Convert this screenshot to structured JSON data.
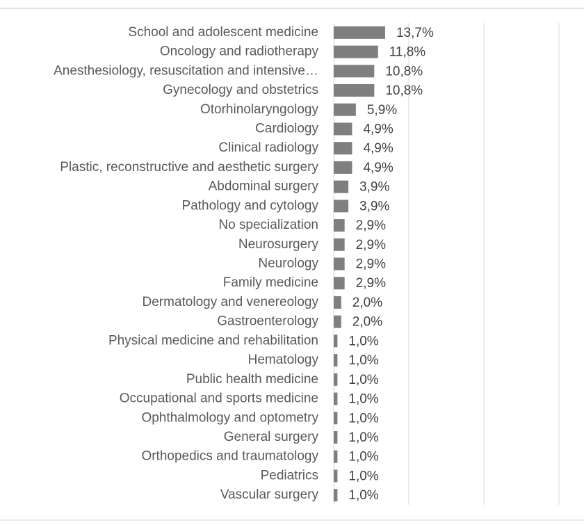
{
  "chart_data": {
    "type": "bar",
    "orientation": "horizontal",
    "categories": [
      "School and adolescent medicine",
      "Oncology and radiotherapy",
      "Anesthesiology, resuscitation and intensive…",
      "Gynecology and obstetrics",
      "Otorhinolaryngology",
      "Cardiology",
      "Clinical radiology",
      "Plastic, reconstructive and aesthetic surgery",
      "Abdominal surgery",
      "Pathology and cytology",
      "No specialization",
      "Neurosurgery",
      "Neurology",
      "Family medicine",
      "Dermatology and venereology",
      "Gastroenterology",
      "Physical medicine and rehabilitation",
      "Hematology",
      "Public health medicine",
      "Occupational and sports medicine",
      "Ophthalmology and optometry",
      "General surgery",
      "Orthopedics and traumatology",
      "Pediatrics",
      "Vascular surgery"
    ],
    "values": [
      13.7,
      11.8,
      10.8,
      10.8,
      5.9,
      4.9,
      4.9,
      4.9,
      3.9,
      3.9,
      2.9,
      2.9,
      2.9,
      2.9,
      2.0,
      2.0,
      1.0,
      1.0,
      1.0,
      1.0,
      1.0,
      1.0,
      1.0,
      1.0,
      1.0
    ],
    "value_labels": [
      "13,7%",
      "11,8%",
      "10,8%",
      "10,8%",
      "5,9%",
      "4,9%",
      "4,9%",
      "4,9%",
      "3,9%",
      "3,9%",
      "2,9%",
      "2,9%",
      "2,9%",
      "2,9%",
      "2,0%",
      "2,0%",
      "1,0%",
      "1,0%",
      "1,0%",
      "1,0%",
      "1,0%",
      "1,0%",
      "1,0%",
      "1,0%",
      "1,0%"
    ],
    "color": "#7f7f7f",
    "xlim": [
      0,
      60
    ],
    "xticks": [
      0,
      20,
      40,
      60
    ],
    "grid": true
  }
}
